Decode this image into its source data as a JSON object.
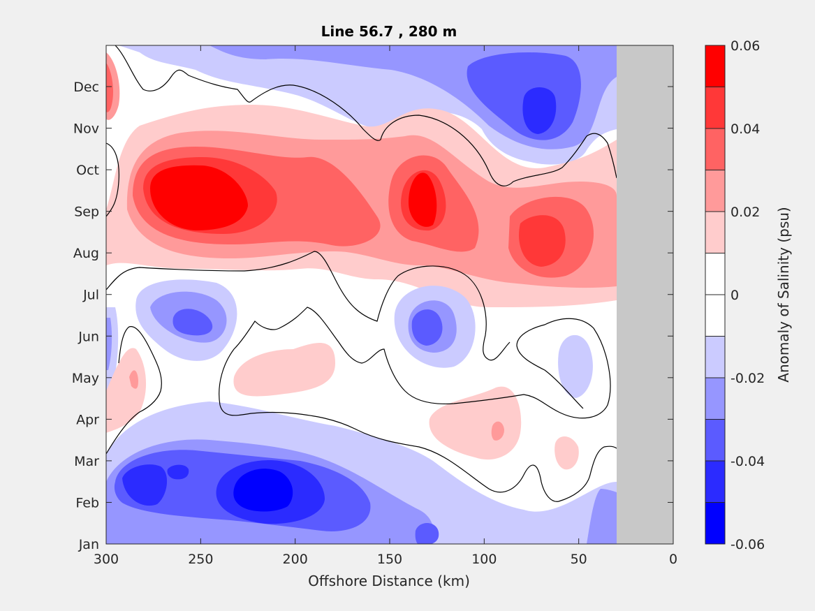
{
  "chart_data": {
    "type": "heatmap",
    "subtype": "filled-contour",
    "title": "Line 56.7 , 280 m",
    "xlabel": "Offshore Distance (km)",
    "ylabel": "",
    "xlim": [
      300,
      0
    ],
    "x_reversed": true,
    "x_ticks": [
      "300",
      "250",
      "200",
      "150",
      "100",
      "50",
      "0"
    ],
    "x_tick_values": [
      300,
      250,
      200,
      150,
      100,
      50,
      0
    ],
    "y_ticks": [
      "Jan",
      "Feb",
      "Mar",
      "Apr",
      "May",
      "Jun",
      "Jul",
      "Aug",
      "Sep",
      "Oct",
      "Nov",
      "Dec"
    ],
    "colorbar": {
      "label": "Anomaly of Salinity (psu)",
      "lim": [
        -0.06,
        0.06
      ],
      "tick_labels": [
        "0.06",
        "0.04",
        "0.02",
        "0",
        "-0.02",
        "-0.04",
        "-0.06"
      ],
      "tick_values": [
        0.06,
        0.04,
        0.02,
        0,
        -0.02,
        -0.04,
        -0.06
      ],
      "levels": [
        -0.06,
        -0.05,
        -0.04,
        -0.03,
        -0.02,
        -0.01,
        0,
        0.01,
        0.02,
        0.03,
        0.04,
        0.05,
        0.06
      ],
      "colors": [
        "#0000ff",
        "#2b2bff",
        "#5b5bff",
        "#9696ff",
        "#cbcbff",
        "#ffffff",
        "#ffffff",
        "#ffcccc",
        "#ff9a9a",
        "#ff6363",
        "#ff3838",
        "#ff0000"
      ]
    },
    "no_data_region": {
      "x_range": [
        30,
        0
      ],
      "color": "#c8c8c8"
    },
    "features": [
      {
        "sign": "positive",
        "peak": 0.06,
        "center_km": 255,
        "month": "Sep"
      },
      {
        "sign": "positive",
        "peak": 0.05,
        "center_km": 133,
        "month": "Sep"
      },
      {
        "sign": "positive",
        "peak": 0.05,
        "center_km": 70,
        "month": "Aug"
      },
      {
        "sign": "positive",
        "peak": 0.04,
        "center_km": 300,
        "month": "Dec"
      },
      {
        "sign": "negative",
        "peak": -0.06,
        "center_km": 220,
        "month": "Feb"
      },
      {
        "sign": "negative",
        "peak": -0.05,
        "center_km": 275,
        "month": "Feb"
      },
      {
        "sign": "negative",
        "peak": -0.05,
        "center_km": 70,
        "month": "Dec"
      },
      {
        "sign": "negative",
        "peak": -0.04,
        "center_km": 133,
        "month": "Jun"
      },
      {
        "sign": "negative",
        "peak": -0.04,
        "center_km": 255,
        "month": "Jun"
      },
      {
        "sign": "negative",
        "peak": -0.02,
        "center_km": 45,
        "month": "May"
      },
      {
        "sign": "positive",
        "peak": 0.02,
        "center_km": 205,
        "month": "May"
      },
      {
        "sign": "positive",
        "peak": 0.03,
        "center_km": 95,
        "month": "Mar"
      }
    ],
    "grid": false,
    "legend": "colorbar-right"
  }
}
